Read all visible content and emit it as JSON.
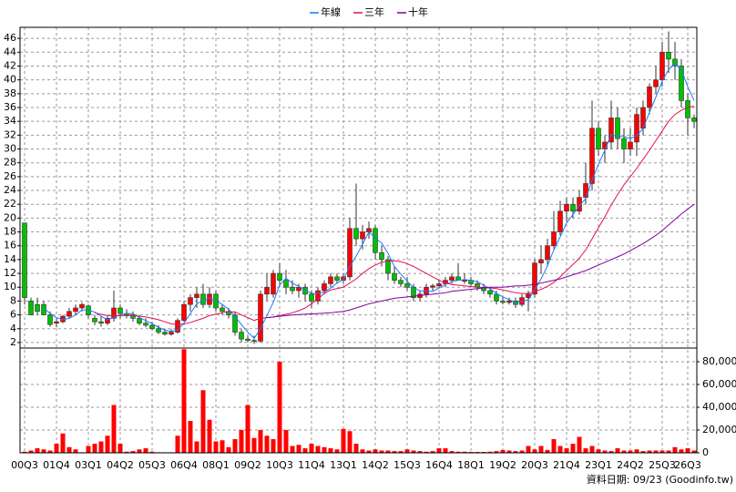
{
  "chart_data": [
    {
      "type": "candlestick",
      "categories": [
        "00Q3",
        null,
        null,
        null,
        null,
        "01Q4",
        null,
        null,
        null,
        null,
        "03Q1",
        null,
        null,
        null,
        null,
        "04Q2",
        null,
        null,
        null,
        null,
        "05Q3",
        null,
        null,
        null,
        null,
        "06Q4",
        null,
        null,
        null,
        null,
        "08Q1",
        null,
        null,
        null,
        null,
        "09Q2",
        null,
        null,
        null,
        null,
        "10Q3",
        null,
        null,
        null,
        null,
        "11Q4",
        null,
        null,
        null,
        null,
        "13Q1",
        null,
        null,
        null,
        null,
        "14Q2",
        null,
        null,
        null,
        null,
        "15Q3",
        null,
        null,
        null,
        null,
        "16Q4",
        null,
        null,
        null,
        null,
        "18Q1",
        null,
        null,
        null,
        null,
        "19Q2",
        null,
        null,
        null,
        null,
        "20Q3",
        null,
        null,
        null,
        null,
        "21Q4",
        null,
        null,
        null,
        null,
        "23Q1",
        null,
        null,
        null,
        null,
        "24Q2",
        null,
        null,
        null,
        null,
        "25Q3",
        null,
        null,
        null,
        "26Q3",
        null
      ],
      "open": [
        19.3,
        8,
        7.5,
        7.5,
        6,
        4.8,
        5,
        5.8,
        6.5,
        7,
        7.3,
        5.5,
        5,
        4.8,
        5.5,
        7,
        6.2,
        6,
        5.5,
        4.8,
        4.5,
        4,
        3.5,
        3.2,
        3.5,
        5.2,
        7.5,
        8.5,
        9,
        7.5,
        9,
        7,
        6.5,
        6,
        3.5,
        2.5,
        2.3,
        2.2,
        9,
        9,
        12,
        11,
        10,
        9.5,
        10,
        9,
        8,
        9.5,
        10.5,
        11.5,
        11,
        11.5,
        18.5,
        17,
        18,
        18.5,
        15,
        14,
        12,
        11,
        10.5,
        10,
        8.5,
        9,
        10,
        10.2,
        10.5,
        11,
        11.5,
        11,
        11,
        10.5,
        10,
        9.5,
        9,
        8,
        7.8,
        8,
        7.5,
        8.5,
        9,
        13.5,
        14,
        16,
        18,
        21,
        22,
        21,
        23,
        25,
        33,
        30,
        31,
        34.5,
        31.5,
        30,
        31,
        33,
        36,
        39,
        40,
        44,
        43,
        42,
        37,
        34.5
      ],
      "high": [
        19.3,
        8.5,
        8.5,
        8,
        6.5,
        5.5,
        6,
        7,
        7.5,
        7.8,
        7.5,
        6,
        5.8,
        5.8,
        9.5,
        7.5,
        6.8,
        6.5,
        6,
        5.5,
        5,
        4.5,
        4,
        4,
        5.5,
        8,
        9,
        10,
        10.5,
        10,
        9.5,
        7.5,
        7,
        6.5,
        4,
        3,
        3,
        9.5,
        12,
        12.5,
        13.5,
        12.5,
        11,
        10.5,
        10.5,
        9.5,
        10,
        11,
        12,
        12,
        12,
        20,
        25,
        19,
        19.5,
        19,
        16,
        14.5,
        13,
        11.5,
        11.5,
        10.5,
        9.5,
        10.5,
        10.5,
        11,
        11.5,
        12,
        13.5,
        12,
        11.5,
        11,
        10.5,
        10,
        9.5,
        8.5,
        8.5,
        8.5,
        9,
        9.5,
        14,
        16,
        17,
        21,
        22.5,
        23,
        23,
        24,
        28,
        37,
        34,
        32,
        37,
        36,
        33,
        33,
        36,
        37,
        39.5,
        42,
        45.5,
        47,
        45.5,
        43,
        38,
        35
      ],
      "low": [
        7.5,
        6,
        6,
        6,
        4.3,
        4.2,
        4.8,
        5.5,
        6,
        6.5,
        5.5,
        4.5,
        4.3,
        4.5,
        5,
        5.5,
        5.5,
        5,
        4.5,
        4.2,
        3.8,
        3.2,
        3,
        3,
        3.3,
        5,
        6.5,
        7,
        7,
        7,
        6.5,
        6,
        5.5,
        3,
        2,
        2,
        1.8,
        2,
        8,
        8.5,
        10,
        9,
        9,
        8.5,
        8,
        7,
        7.5,
        9,
        10,
        10.5,
        10.5,
        11,
        16,
        15.5,
        17,
        14,
        13,
        11,
        10.5,
        10,
        9.5,
        8,
        8,
        8.5,
        9.5,
        9.8,
        10,
        10.5,
        11,
        10.5,
        10,
        9.5,
        9,
        8.5,
        7.5,
        7.5,
        7.5,
        7,
        7.2,
        6.5,
        8.5,
        12,
        13,
        15.5,
        17.5,
        19.5,
        20,
        20.5,
        22,
        24,
        29,
        28,
        30,
        30,
        28,
        29,
        29,
        32,
        35,
        38,
        39,
        41,
        40,
        36,
        32,
        33
      ],
      "close": [
        8.5,
        6,
        6.5,
        6,
        4.6,
        5,
        5.8,
        6.5,
        7,
        7.5,
        6,
        5,
        4.8,
        5.5,
        7,
        6.2,
        6,
        5.5,
        4.8,
        4.5,
        4,
        3.5,
        3.2,
        3.5,
        5.2,
        7.5,
        8.5,
        9,
        7.5,
        9,
        7,
        6.5,
        6,
        3.5,
        2.5,
        2.3,
        2.2,
        9,
        10,
        12,
        11,
        10,
        9.5,
        10,
        9,
        8,
        9.5,
        10.5,
        11.5,
        11,
        11.5,
        18.5,
        17,
        18,
        18.5,
        15,
        14,
        12,
        11,
        10.5,
        10,
        8.5,
        9,
        10,
        10.2,
        10.5,
        11,
        11.5,
        11,
        11,
        10.5,
        10,
        9.5,
        9,
        8,
        7.8,
        8,
        7.5,
        8.5,
        9,
        13.5,
        14,
        16,
        18,
        21,
        22,
        21,
        23,
        25,
        33,
        30,
        31,
        34.5,
        31.5,
        30,
        31,
        35,
        36,
        39,
        40,
        44,
        43,
        42,
        37,
        34.5,
        34
      ],
      "up_color": "#ff0000",
      "down_color": "#00c000",
      "series": [
        {
          "name": "年線",
          "color": "#1e78ff",
          "values": [
            null,
            null,
            null,
            7,
            6.2,
            5.6,
            5.3,
            5.5,
            6,
            6.7,
            6.7,
            6.4,
            5.8,
            5.3,
            5.6,
            6,
            6.2,
            6.2,
            5.6,
            5.2,
            4.7,
            4.2,
            3.8,
            3.6,
            3.8,
            4.8,
            6.2,
            7.6,
            8.1,
            8.5,
            8.1,
            7.5,
            6.8,
            5.8,
            4.6,
            3.5,
            2.6,
            4,
            5.9,
            7.8,
            10.3,
            11.3,
            10.6,
            10.1,
            9.6,
            9.1,
            9.1,
            9.3,
            9.9,
            10.6,
            11.1,
            13,
            14.5,
            16.2,
            18,
            17.1,
            16.4,
            14.9,
            13,
            11.9,
            10.9,
            9.9,
            9.5,
            9.4,
            9.4,
            9.9,
            10.4,
            10.8,
            11,
            11.1,
            11,
            10.8,
            10.3,
            9.8,
            9.1,
            8.6,
            8.2,
            7.8,
            7.9,
            8.2,
            9.6,
            11.2,
            13.1,
            15.4,
            17.3,
            19.3,
            20.5,
            21.8,
            22.8,
            25.5,
            27.8,
            29.8,
            32.1,
            31.8,
            31.8,
            31.5,
            31.9,
            33,
            35.3,
            37.5,
            39.8,
            41.5,
            42.3,
            41.5,
            39,
            37
          ]
        },
        {
          "name": "三年",
          "color": "#e0105a",
          "values": [
            null,
            null,
            null,
            null,
            null,
            null,
            null,
            null,
            null,
            null,
            null,
            6.3,
            6.1,
            5.9,
            5.9,
            5.9,
            5.9,
            5.9,
            5.8,
            5.7,
            5.5,
            5.3,
            5,
            4.7,
            4.6,
            4.7,
            4.9,
            5.2,
            5.5,
            5.9,
            6.1,
            6.3,
            6.5,
            6.4,
            6,
            5.6,
            5.2,
            5.5,
            5.6,
            5.7,
            5.9,
            6.1,
            6.3,
            6.6,
            7,
            7.6,
            8.3,
            9.1,
            9.6,
            9.8,
            10,
            10.6,
            11.2,
            12,
            12.7,
            13.2,
            13.6,
            13.8,
            13.8,
            13.7,
            13.4,
            13,
            12.5,
            12,
            11.5,
            11,
            10.6,
            10.4,
            10.3,
            10.2,
            10.1,
            10,
            9.9,
            9.9,
            9.8,
            9.6,
            9.4,
            9.2,
            9.1,
            9.1,
            9.4,
            9.7,
            10.1,
            10.7,
            11.5,
            12.4,
            13.3,
            14.2,
            15.4,
            17,
            18.6,
            20.2,
            21.9,
            23.4,
            24.8,
            26,
            27.2,
            28.5,
            29.8,
            31.2,
            32.6,
            34,
            35,
            35.6,
            36,
            36.2
          ]
        },
        {
          "name": "十年",
          "color": "#8000a0",
          "values": [
            null,
            null,
            null,
            null,
            null,
            null,
            null,
            null,
            null,
            null,
            null,
            null,
            null,
            null,
            null,
            null,
            null,
            null,
            null,
            null,
            null,
            null,
            null,
            null,
            null,
            null,
            null,
            null,
            null,
            null,
            null,
            null,
            null,
            null,
            null,
            null,
            null,
            null,
            5.6,
            5.7,
            5.8,
            5.9,
            6,
            6.05,
            6.1,
            6.15,
            6.2,
            6.25,
            6.3,
            6.4,
            6.5,
            6.7,
            7,
            7.3,
            7.6,
            7.8,
            8,
            8.2,
            8.4,
            8.5,
            8.6,
            8.7,
            8.8,
            8.9,
            9,
            9.1,
            9.2,
            9.4,
            9.5,
            9.6,
            9.7,
            9.8,
            9.9,
            10,
            10,
            10,
            10.1,
            10.2,
            10.2,
            10.3,
            10.4,
            10.6,
            10.8,
            11,
            11.2,
            11.5,
            11.8,
            12.1,
            12.4,
            12.8,
            13.2,
            13.6,
            14,
            14.4,
            14.8,
            15.3,
            15.8,
            16.3,
            16.9,
            17.5,
            18.2,
            19,
            19.8,
            20.6,
            21.3,
            22
          ]
        }
      ],
      "ylim": [
        1.2,
        47.6
      ],
      "yticks": [
        2,
        4,
        6,
        8,
        10,
        12,
        14,
        16,
        18,
        20,
        22,
        24,
        26,
        28,
        30,
        32,
        34,
        36,
        38,
        40,
        42,
        44,
        46
      ],
      "grid": true,
      "legend": "top"
    },
    {
      "type": "bar",
      "values": [
        1000,
        2000,
        4000,
        3000,
        2000,
        8000,
        17000,
        5000,
        3000,
        500,
        6000,
        8000,
        10000,
        15000,
        42000,
        8000,
        1000,
        1500,
        3000,
        4000,
        1000,
        500,
        500,
        500,
        15000,
        91000,
        28000,
        10000,
        55000,
        29000,
        10000,
        11000,
        5000,
        12000,
        20000,
        42000,
        13000,
        20000,
        15000,
        12000,
        80000,
        20000,
        6000,
        7000,
        4000,
        8000,
        6000,
        5000,
        4000,
        3000,
        21000,
        19000,
        8000,
        3000,
        2000,
        3000,
        2000,
        2000,
        1500,
        1500,
        3000,
        2000,
        1500,
        1000,
        1500,
        4000,
        4000,
        1500,
        1000,
        1000,
        800,
        800,
        800,
        1000,
        1500,
        2500,
        2000,
        1500,
        2000,
        6000,
        3000,
        6000,
        2500,
        12000,
        6000,
        4000,
        8000,
        14000,
        4000,
        6000,
        3000,
        2000,
        1500,
        4000,
        2000,
        2000,
        3000,
        1500,
        2000,
        2000,
        2000,
        2000,
        5000,
        3000,
        4000,
        2000
      ],
      "color": "#ff0000",
      "ylim": [
        0,
        92000
      ],
      "yticks": [
        0,
        {
          "value": 20000,
          "label": "20,000"
        },
        {
          "value": 40000,
          "label": "40,000"
        },
        {
          "value": 60000,
          "label": "60,000"
        },
        {
          "value": 80000,
          "label": "80,000"
        }
      ],
      "grid": true,
      "source": "資料日期: 09/23 (Goodinfo.tw)"
    }
  ]
}
